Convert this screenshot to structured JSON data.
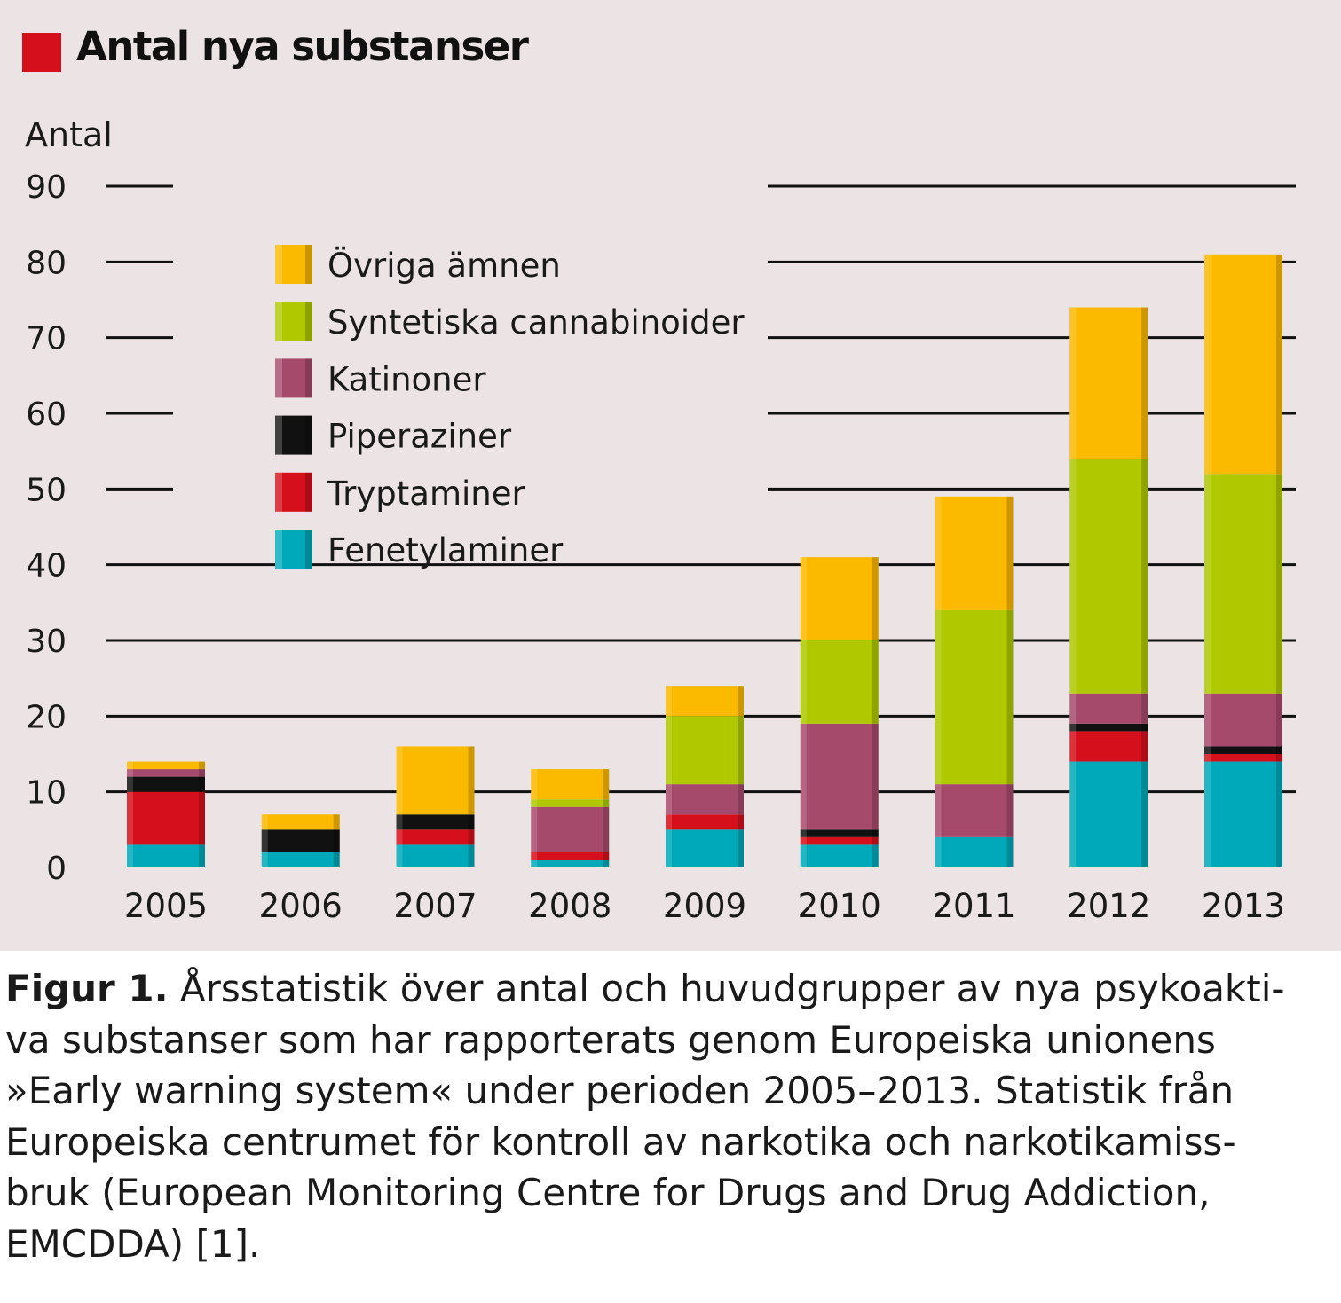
{
  "chart_data": {
    "type": "bar",
    "stacked": true,
    "title": "Antal nya substanser",
    "title_marker_color": "#d50f1b",
    "ylabel": "Antal",
    "xlabel": "",
    "ylim": [
      0,
      90
    ],
    "yticks": [
      "0",
      "10",
      "20",
      "30",
      "40",
      "50",
      "60",
      "70",
      "80",
      "90"
    ],
    "grid": "horizontal lines",
    "legend_position": "upper left",
    "categories": [
      "2005",
      "2006",
      "2007",
      "2008",
      "2009",
      "2010",
      "2011",
      "2012",
      "2013"
    ],
    "series": [
      {
        "name": "Fenetylaminer",
        "color": "#00a9b9",
        "values": [
          3,
          2,
          3,
          1,
          5,
          3,
          4,
          14,
          14
        ]
      },
      {
        "name": "Tryptaminer",
        "color": "#d50f1b",
        "values": [
          7,
          0,
          2,
          1,
          2,
          1,
          0,
          4,
          1
        ]
      },
      {
        "name": "Piperaziner",
        "color": "#111111",
        "values": [
          2,
          3,
          2,
          0,
          0,
          1,
          0,
          1,
          1
        ]
      },
      {
        "name": "Katinoner",
        "color": "#a64a6b",
        "values": [
          1,
          0,
          0,
          6,
          4,
          14,
          7,
          4,
          7
        ]
      },
      {
        "name": "Syntetiska cannabinoider",
        "color": "#b0c800",
        "values": [
          0,
          0,
          0,
          1,
          9,
          11,
          23,
          31,
          29
        ]
      },
      {
        "name": "Övriga ämnen",
        "color": "#fbb900",
        "values": [
          1,
          2,
          9,
          4,
          4,
          11,
          15,
          20,
          29
        ]
      }
    ]
  },
  "caption": {
    "label": "Figur 1.",
    "lines": [
      " Årsstatistik över antal och huvudgrupper av nya psykoakti-",
      "va substanser som har rapporterats genom Europeiska unionens",
      "»Early warning system« under perioden 2005–2013. Statistik från",
      "Europeiska centrumet för kontroll av narkotika och narkotikamiss-",
      "bruk (European Monitoring Centre for Drugs and Drug Addiction,",
      "EMCDDA) [1]."
    ]
  }
}
